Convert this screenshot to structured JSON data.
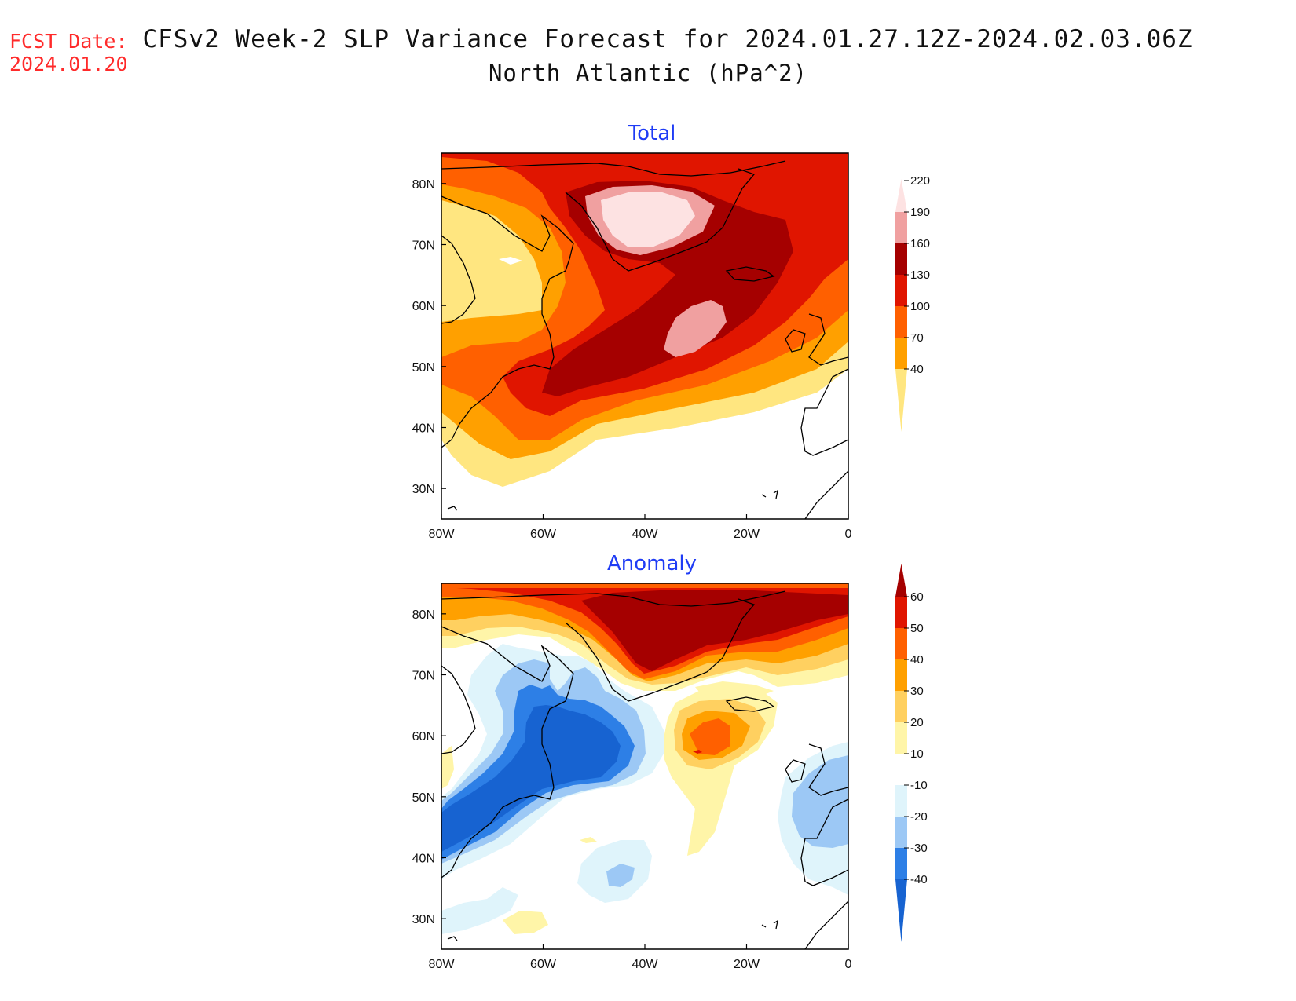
{
  "header": {
    "fcst_label": "FCST Date:",
    "fcst_date": "2024.01.20",
    "title": "CFSv2 Week-2 SLP Variance Forecast for 2024.01.27.12Z-2024.02.03.06Z",
    "subtitle": "North Atlantic (hPa^2)"
  },
  "map": {
    "x_ticks": [
      "80W",
      "60W",
      "40W",
      "20W",
      "0"
    ],
    "y_ticks": [
      "30N",
      "40N",
      "50N",
      "60N",
      "70N",
      "80N"
    ]
  },
  "panels": [
    {
      "title": "Total",
      "colorbar": {
        "labels": [
          "40",
          "70",
          "100",
          "130",
          "160",
          "190",
          "220"
        ],
        "colors": [
          "#ffe680",
          "#ffa000",
          "#ff6000",
          "#e01500",
          "#a50000",
          "#f0a0a0",
          "#fde2e2"
        ]
      }
    },
    {
      "title": "Anomaly",
      "colorbar": {
        "labels": [
          "-40",
          "-30",
          "-20",
          "-10",
          "10",
          "20",
          "30",
          "40",
          "50",
          "60"
        ],
        "colors": [
          "#1763d1",
          "#2d7fe6",
          "#9cc8f5",
          "#dff4fb",
          "#ffffff",
          "#fff5a8",
          "#ffd060",
          "#ffa000",
          "#ff6000",
          "#e01500",
          "#a50000"
        ]
      }
    }
  ]
}
